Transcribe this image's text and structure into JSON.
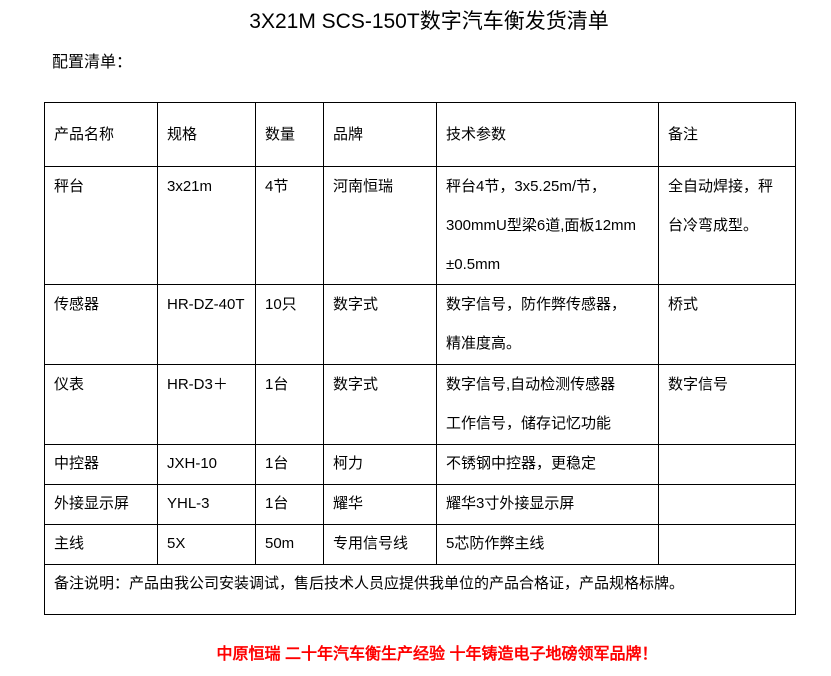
{
  "title": "3X21M SCS-150T数字汽车衡发货清单",
  "subtitle": "配置清单：",
  "table": {
    "headers": [
      "产品名称",
      "规格",
      "数量",
      "品牌",
      "技术参数",
      "备注"
    ],
    "rows": [
      {
        "name": "秤台",
        "spec": "3x21m",
        "qty": "4节",
        "brand": "河南恒瑞",
        "tech": [
          "秤台4节，3x5.25m/节，",
          "300mmU型梁6道,面板12mm",
          "±0.5mm"
        ],
        "remark": [
          "全自动焊接，秤",
          "台冷弯成型。"
        ]
      },
      {
        "name": "传感器",
        "spec": "HR-DZ-40T",
        "qty": "10只",
        "brand": "数字式",
        "tech": [
          "数字信号，防作弊传感器，",
          "精准度高。"
        ],
        "remark": [
          "桥式"
        ]
      },
      {
        "name": "仪表",
        "spec": "HR-D3＋",
        "qty": "1台",
        "brand": "数字式",
        "tech": [
          "数字信号,自动检测传感器",
          "工作信号，储存记忆功能"
        ],
        "remark": [
          "数字信号"
        ]
      },
      {
        "name": "中控器",
        "spec": "JXH-10",
        "qty": "1台",
        "brand": "柯力",
        "tech": [
          "不锈钢中控器，更稳定"
        ],
        "remark": []
      },
      {
        "name": "外接显示屏",
        "spec": "YHL-3",
        "qty": "1台",
        "brand": "耀华",
        "tech": [
          "耀华3寸外接显示屏"
        ],
        "remark": []
      },
      {
        "name": "主线",
        "spec": "5X",
        "qty": "50m",
        "brand": "专用信号线",
        "tech": [
          "5芯防作弊主线"
        ],
        "remark": []
      }
    ],
    "note": "备注说明：产品由我公司安装调试，售后技术人员应提供我单位的产品合格证，产品规格标牌。"
  },
  "footer": "中原恒瑞 二十年汽车衡生产经验 十年铸造电子地磅领军品牌！",
  "colors": {
    "footer": "#ff0000",
    "border": "#000000"
  }
}
